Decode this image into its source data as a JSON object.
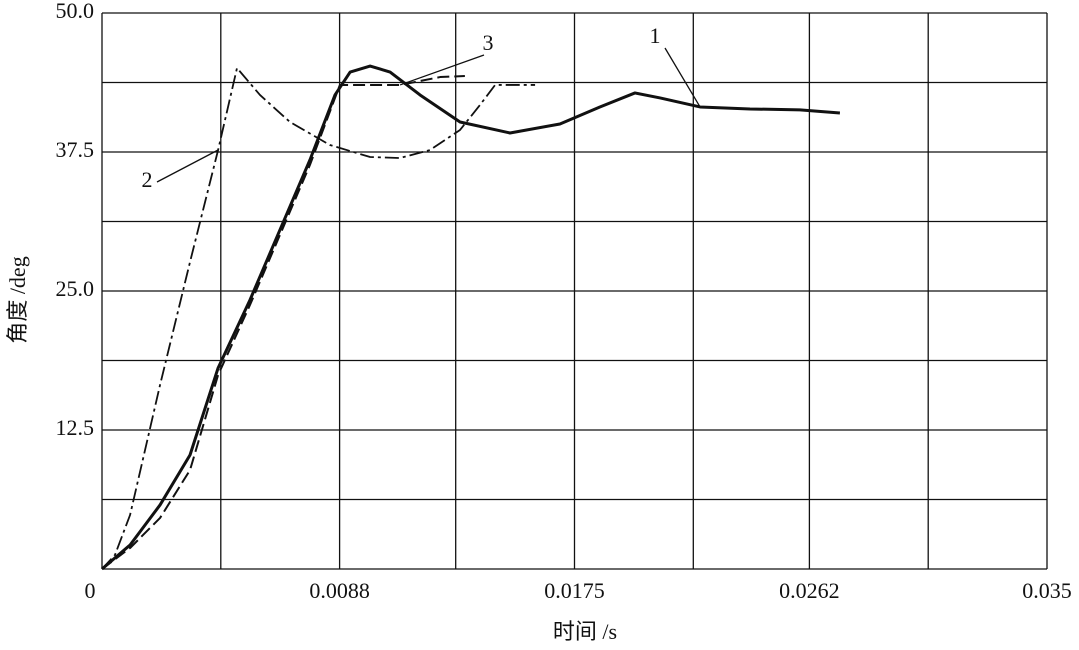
{
  "chart_data": {
    "type": "line",
    "x_label": "时间 /s",
    "y_label": "角度 /deg",
    "xlim": [
      0,
      0.035
    ],
    "ylim": [
      0,
      50
    ],
    "xticks": [
      0,
      {
        "value": 0.0044,
        "label": null
      },
      0.0088,
      {
        "value": 0.0131,
        "label": null
      },
      0.0175,
      {
        "value": 0.0219,
        "label": null
      },
      0.0262,
      {
        "value": 0.0306,
        "label": null
      },
      0.035
    ],
    "yticks": [
      {
        "value": 0,
        "label": null
      },
      {
        "value": 6.25,
        "label": null
      },
      12.5,
      {
        "value": 18.75,
        "label": null
      },
      {
        "value": 25,
        "label": "25.0"
      },
      {
        "value": 31.25,
        "label": null
      },
      37.5,
      {
        "value": 43.75,
        "label": null
      },
      {
        "value": 50,
        "label": "50.0"
      }
    ],
    "grid": true,
    "series": [
      {
        "name": "1",
        "color": "#111111",
        "dash": "solid",
        "width": 3,
        "x": [
          0,
          0.00104,
          0.00215,
          0.00326,
          0.0043,
          0.00548,
          0.00659,
          0.0077,
          0.00863,
          0.00919,
          0.00993,
          0.01067,
          0.01178,
          0.01326,
          0.01511,
          0.01696,
          0.01844,
          0.01974,
          0.02067,
          0.02215,
          0.024,
          0.02585,
          0.02733
        ],
        "values": [
          0,
          2.16,
          5.76,
          10.25,
          18.08,
          24.19,
          30.49,
          36.78,
          42.63,
          44.69,
          45.23,
          44.69,
          42.63,
          40.2,
          39.21,
          40.02,
          41.55,
          42.81,
          42.36,
          41.55,
          41.37,
          41.29,
          41.01
        ]
      },
      {
        "name": "2",
        "color": "#111111",
        "dash": "dashdot",
        "width": 1.8,
        "x": [
          0,
          0.00048,
          0.00104,
          0.00215,
          0.00326,
          0.0043,
          0.005,
          0.00585,
          0.00696,
          0.00844,
          0.00993,
          0.01104,
          0.01215,
          0.01326,
          0.014,
          0.01456,
          0.01604
        ],
        "values": [
          0,
          1.26,
          4.86,
          16.55,
          27.61,
          37.68,
          45.05,
          42.63,
          40.2,
          38.13,
          37.05,
          36.96,
          37.68,
          39.48,
          41.73,
          43.53,
          43.53
        ]
      },
      {
        "name": "3",
        "color": "#111111",
        "dash": "dashed",
        "width": 2,
        "x": [
          0,
          0.00104,
          0.00215,
          0.00326,
          0.0043,
          0.00548,
          0.00659,
          0.0077,
          0.00881,
          0.00993,
          0.01104,
          0.01252,
          0.01344
        ],
        "values": [
          0,
          1.89,
          4.59,
          8.9,
          17.45,
          23.74,
          30.04,
          36.33,
          43.53,
          43.53,
          43.53,
          44.24,
          44.33
        ]
      }
    ]
  }
}
